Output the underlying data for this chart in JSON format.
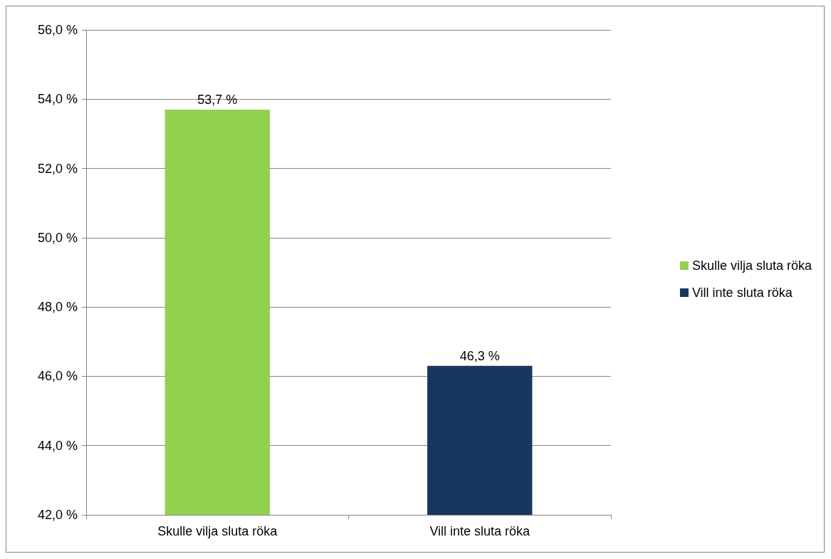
{
  "chart_data": {
    "type": "bar",
    "categories": [
      "Skulle vilja sluta röka",
      "Vill inte sluta röka"
    ],
    "series": [
      {
        "name": "Skulle vilja sluta röka",
        "color": "#92d050",
        "values": [
          53.7,
          null
        ],
        "value_labels": [
          "53,7 %",
          null
        ]
      },
      {
        "name": "Vill inte sluta röka",
        "color": "#17375e",
        "values": [
          null,
          46.3
        ],
        "value_labels": [
          null,
          "46,3 %"
        ]
      }
    ],
    "ylim": [
      42,
      56
    ],
    "yticks": [
      {
        "value": 42,
        "label": "42,0 %"
      },
      {
        "value": 44,
        "label": "44,0 %"
      },
      {
        "value": 46,
        "label": "46,0 %"
      },
      {
        "value": 48,
        "label": "48,0 %"
      },
      {
        "value": 50,
        "label": "50,0 %"
      },
      {
        "value": 52,
        "label": "52,0 %"
      },
      {
        "value": 54,
        "label": "54,0 %"
      },
      {
        "value": 56,
        "label": "56,0 %"
      }
    ],
    "grid": "y",
    "legend": "right"
  }
}
